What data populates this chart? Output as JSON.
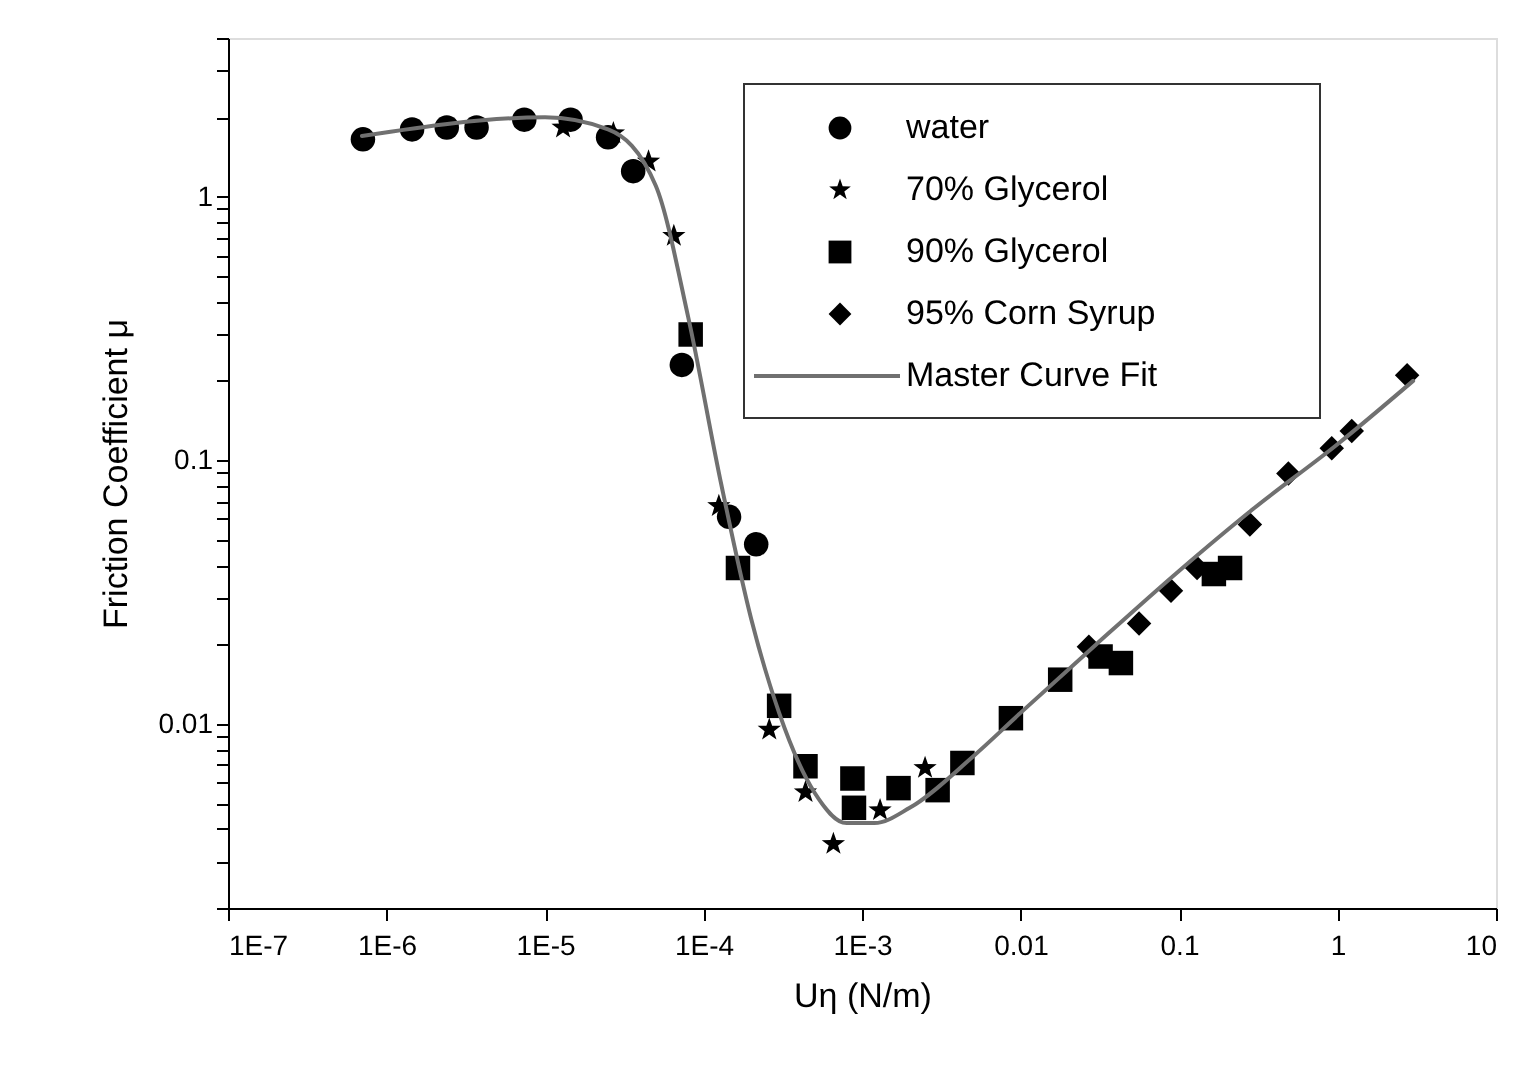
{
  "chart_data": {
    "type": "scatter",
    "xlabel": "Uη (N/m)",
    "ylabel": "Friction Coefficient μ",
    "log": "xy",
    "xlim": [
      1e-07,
      10
    ],
    "ylim": [
      0.002,
      4
    ],
    "xticks": [
      {
        "value": 1e-07,
        "label": "1E-7"
      },
      {
        "value": 1e-06,
        "label": "1E-6"
      },
      {
        "value": 1e-05,
        "label": "1E-5"
      },
      {
        "value": 0.0001,
        "label": "1E-4"
      },
      {
        "value": 0.001,
        "label": "1E-3"
      },
      0.01,
      0.1,
      1,
      10
    ],
    "yticks": [
      {
        "value": 0.002,
        "label": null
      },
      {
        "value": 0.003,
        "label": null
      },
      {
        "value": 0.004,
        "label": null
      },
      {
        "value": 0.005,
        "label": null
      },
      {
        "value": 0.006,
        "label": null
      },
      {
        "value": 0.007,
        "label": null
      },
      {
        "value": 0.008,
        "label": null
      },
      {
        "value": 0.009,
        "label": null
      },
      0.01,
      {
        "value": 0.02,
        "label": null
      },
      {
        "value": 0.03,
        "label": null
      },
      {
        "value": 0.04,
        "label": null
      },
      {
        "value": 0.05,
        "label": null
      },
      {
        "value": 0.06,
        "label": null
      },
      {
        "value": 0.07,
        "label": null
      },
      {
        "value": 0.08,
        "label": null
      },
      {
        "value": 0.09,
        "label": null
      },
      0.1,
      {
        "value": 0.2,
        "label": null
      },
      {
        "value": 0.3,
        "label": null
      },
      {
        "value": 0.4,
        "label": null
      },
      {
        "value": 0.5,
        "label": null
      },
      {
        "value": 0.6,
        "label": null
      },
      {
        "value": 0.7,
        "label": null
      },
      {
        "value": 0.8,
        "label": null
      },
      {
        "value": 0.9,
        "label": null
      },
      1,
      {
        "value": 2,
        "label": null
      },
      {
        "value": 3,
        "label": null
      },
      {
        "value": 4,
        "label": null
      }
    ],
    "grid": false,
    "legend": "top right",
    "series": [
      {
        "name": "water",
        "marker": "circle",
        "color": "#000000",
        "x": [
          7.1e-07,
          1.45e-06,
          2.4e-06,
          3.7e-06,
          7.4e-06,
          1.45e-05,
          2.5e-05,
          3.6e-05,
          7.3e-05,
          0.000145,
          0.000215
        ],
        "values": [
          1.65,
          1.8,
          1.83,
          1.83,
          1.96,
          1.96,
          1.68,
          1.25,
          0.23,
          0.061,
          0.048
        ]
      },
      {
        "name": "70% Glycerol",
        "marker": "star",
        "color": "#000000",
        "x": [
          1.3e-05,
          2.7e-05,
          4.5e-05,
          6.5e-05,
          0.000125,
          0.00026,
          0.00044,
          0.00066,
          0.0013,
          0.0025
        ],
        "values": [
          1.83,
          1.74,
          1.36,
          0.71,
          0.067,
          0.0095,
          0.0055,
          0.0035,
          0.0047,
          0.0068
        ]
      },
      {
        "name": "90% Glycerol",
        "marker": "square",
        "color": "#000000",
        "x": [
          8.3e-05,
          0.000165,
          0.0003,
          0.00044,
          0.00087,
          0.00089,
          0.0017,
          0.003,
          0.0043,
          0.0087,
          0.0178,
          0.032,
          0.043,
          0.166,
          0.21
        ],
        "values": [
          0.3,
          0.039,
          0.0117,
          0.0069,
          0.0062,
          0.0048,
          0.0057,
          0.0056,
          0.0071,
          0.0105,
          0.0147,
          0.018,
          0.017,
          0.037,
          0.039
        ]
      },
      {
        "name": "95% Corn Syrup",
        "marker": "diamond",
        "color": "#000000",
        "x": [
          0.027,
          0.056,
          0.089,
          0.13,
          0.28,
          0.49,
          0.92,
          1.23,
          2.75
        ],
        "values": [
          0.0196,
          0.024,
          0.032,
          0.039,
          0.057,
          0.089,
          0.111,
          0.129,
          0.21
        ]
      },
      {
        "name": "Master Curve Fit",
        "type": "line",
        "marker": "none",
        "line_style": "solid",
        "color": "#707070",
        "x": [
          7e-07,
          1e-05,
          2.5e-05,
          5e-05,
          8e-05,
          0.00013,
          0.0002,
          0.0003,
          0.0005,
          0.0008,
          0.0012,
          0.002,
          0.005,
          0.01,
          0.03,
          0.1,
          0.3,
          1,
          3
        ],
        "values": [
          1.7,
          2.0,
          1.8,
          1.1,
          0.35,
          0.08,
          0.025,
          0.011,
          0.0055,
          0.0042,
          0.0042,
          0.0048,
          0.0075,
          0.011,
          0.02,
          0.038,
          0.066,
          0.115,
          0.2
        ]
      }
    ]
  }
}
